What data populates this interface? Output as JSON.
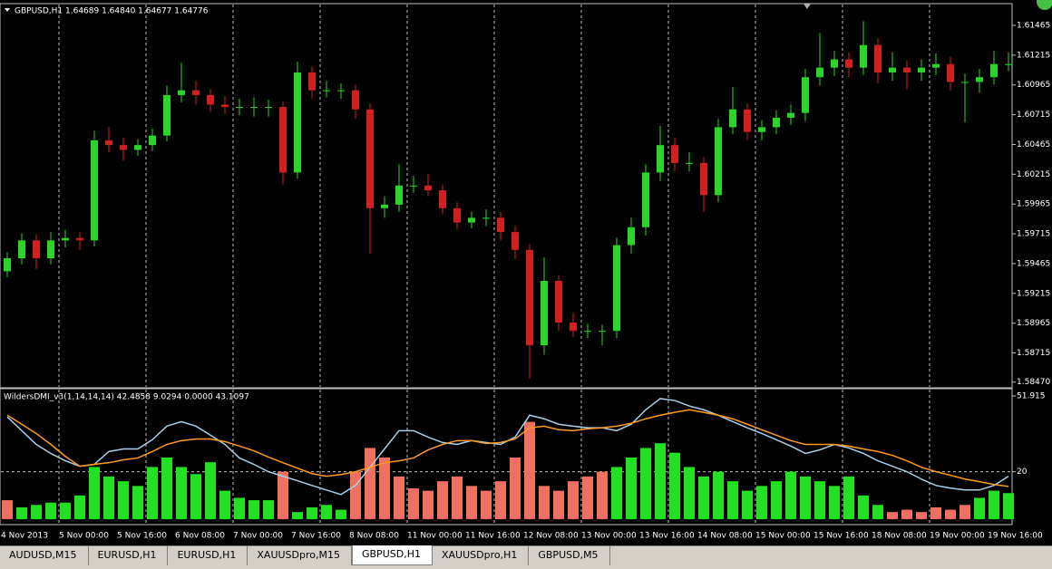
{
  "chart_data": [
    {
      "type": "candlestick",
      "title": "GBPUSD,H1  1.64689 1.64840 1.64677 1.64776",
      "up_color": "#2bd42b",
      "down_color": "#d02020",
      "ylim": [
        1.5843,
        1.6164
      ],
      "yticks": [
        1.61465,
        1.61215,
        1.60965,
        1.60715,
        1.60465,
        1.60215,
        1.59965,
        1.59715,
        1.59465,
        1.59215,
        1.58965,
        1.58715,
        {
          "value": 1.5847,
          "label": "1.58470"
        }
      ],
      "candles": [
        [
          1.594,
          1.5956,
          1.5935,
          1.5951
        ],
        [
          1.5951,
          1.5972,
          1.5946,
          1.5966
        ],
        [
          1.5966,
          1.5971,
          1.5942,
          1.5951
        ],
        [
          1.5951,
          1.5973,
          1.5946,
          1.5966
        ],
        [
          1.5966,
          1.5975,
          1.596,
          1.5968
        ],
        [
          1.5968,
          1.5973,
          1.5958,
          1.5966
        ],
        [
          1.5966,
          1.6058,
          1.5961,
          1.605
        ],
        [
          1.605,
          1.6061,
          1.604,
          1.6046
        ],
        [
          1.6046,
          1.6052,
          1.6033,
          1.6042
        ],
        [
          1.6042,
          1.6051,
          1.6037,
          1.6046
        ],
        [
          1.6046,
          1.606,
          1.6041,
          1.6054
        ],
        [
          1.6054,
          1.6096,
          1.6049,
          1.6088
        ],
        [
          1.6088,
          1.6115,
          1.6082,
          1.6092
        ],
        [
          1.6092,
          1.61,
          1.608,
          1.6088
        ],
        [
          1.6088,
          1.6093,
          1.6074,
          1.608
        ],
        [
          1.608,
          1.6087,
          1.6072,
          1.6078
        ],
        [
          1.6078,
          1.6085,
          1.6071,
          1.6078
        ],
        [
          1.6078,
          1.6086,
          1.607,
          1.6078
        ],
        [
          1.6078,
          1.6084,
          1.607,
          1.6078
        ],
        [
          1.6078,
          1.6083,
          1.6013,
          1.6023
        ],
        [
          1.6023,
          1.6116,
          1.6018,
          1.6107
        ],
        [
          1.6107,
          1.6112,
          1.6085,
          1.6092
        ],
        [
          1.6092,
          1.61,
          1.6086,
          1.6092
        ],
        [
          1.6092,
          1.6098,
          1.6085,
          1.6092
        ],
        [
          1.6092,
          1.6097,
          1.6068,
          1.6076
        ],
        [
          1.6076,
          1.6081,
          1.5955,
          1.5993
        ],
        [
          1.5993,
          1.6003,
          1.5985,
          1.5996
        ],
        [
          1.5996,
          1.603,
          1.599,
          1.6012
        ],
        [
          1.6012,
          1.602,
          1.6006,
          1.6012
        ],
        [
          1.6012,
          1.6022,
          1.6003,
          1.6008
        ],
        [
          1.6008,
          1.6013,
          1.5988,
          1.5993
        ],
        [
          1.5993,
          1.5998,
          1.5975,
          1.5981
        ],
        [
          1.5981,
          1.599,
          1.5976,
          1.5985
        ],
        [
          1.5985,
          1.5992,
          1.5978,
          1.5985
        ],
        [
          1.5985,
          1.599,
          1.5966,
          1.5973
        ],
        [
          1.5973,
          1.5978,
          1.595,
          1.5958
        ],
        [
          1.5958,
          1.5963,
          1.585,
          1.5878
        ],
        [
          1.5878,
          1.5952,
          1.587,
          1.5932
        ],
        [
          1.5932,
          1.5937,
          1.589,
          1.5897
        ],
        [
          1.5897,
          1.5905,
          1.5885,
          1.589
        ],
        [
          1.589,
          1.5896,
          1.5884,
          1.589
        ],
        [
          1.589,
          1.5895,
          1.5878,
          1.589
        ],
        [
          1.589,
          1.5968,
          1.5884,
          1.5962
        ],
        [
          1.5962,
          1.5985,
          1.5955,
          1.5977
        ],
        [
          1.5977,
          1.603,
          1.597,
          1.6023
        ],
        [
          1.6023,
          1.6062,
          1.6016,
          1.6046
        ],
        [
          1.6046,
          1.6052,
          1.6024,
          1.6031
        ],
        [
          1.6031,
          1.604,
          1.6024,
          1.6031
        ],
        [
          1.6031,
          1.6036,
          1.599,
          1.6004
        ],
        [
          1.6004,
          1.6068,
          1.5998,
          1.6061
        ],
        [
          1.6061,
          1.6095,
          1.6055,
          1.6076
        ],
        [
          1.6076,
          1.6081,
          1.605,
          1.6057
        ],
        [
          1.6057,
          1.6067,
          1.605,
          1.6061
        ],
        [
          1.6061,
          1.6075,
          1.6055,
          1.6069
        ],
        [
          1.6069,
          1.608,
          1.6063,
          1.6073
        ],
        [
          1.6073,
          1.611,
          1.6066,
          1.6103
        ],
        [
          1.6103,
          1.614,
          1.6096,
          1.6111
        ],
        [
          1.6111,
          1.6125,
          1.6104,
          1.6118
        ],
        [
          1.6118,
          1.6124,
          1.6103,
          1.6111
        ],
        [
          1.6111,
          1.615,
          1.6105,
          1.613
        ],
        [
          1.613,
          1.6136,
          1.6098,
          1.6107
        ],
        [
          1.6107,
          1.6124,
          1.61,
          1.6111
        ],
        [
          1.6111,
          1.6117,
          1.6093,
          1.6107
        ],
        [
          1.6107,
          1.6118,
          1.61,
          1.6111
        ],
        [
          1.6111,
          1.6123,
          1.6105,
          1.6114
        ],
        [
          1.6114,
          1.612,
          1.6092,
          1.6099
        ],
        [
          1.6099,
          1.6106,
          1.6065,
          1.6099
        ],
        [
          1.6099,
          1.611,
          1.609,
          1.6103
        ],
        [
          1.6103,
          1.6125,
          1.6097,
          1.6114
        ],
        [
          1.6114,
          1.6124,
          1.6108,
          1.6114
        ]
      ],
      "xlabels": [
        "4 Nov 2013",
        "5 Nov 00:00",
        "5 Nov 16:00",
        "6 Nov 08:00",
        "7 Nov 00:00",
        "7 Nov 16:00",
        "8 Nov 08:00",
        "11 Nov 00:00",
        "11 Nov 16:00",
        "12 Nov 08:00",
        "13 Nov 00:00",
        "13 Nov 16:00",
        "14 Nov 08:00",
        "15 Nov 00:00",
        "15 Nov 16:00",
        "18 Nov 08:00",
        "19 Nov 00:00",
        "19 Nov 16:00"
      ]
    },
    {
      "type": "indicator",
      "title": "WildersDMI_v3(1,14,14,14) 42.4858 9.0294 0.0000 43.1097",
      "ylim": [
        -1.9,
        54.6
      ],
      "yticks": [
        51.915,
        20
      ],
      "histogram": [
        8,
        5,
        6,
        7,
        7,
        10,
        22,
        18,
        16,
        14,
        22,
        26,
        22,
        19,
        24,
        12,
        9,
        8,
        8,
        20,
        3,
        5,
        6,
        4,
        20,
        30,
        26,
        18,
        13,
        12,
        16,
        18,
        14,
        12,
        16,
        26,
        41,
        14,
        12,
        16,
        18,
        20,
        22,
        26,
        30,
        32,
        28,
        22,
        18,
        20,
        16,
        12,
        14,
        16,
        20,
        18,
        16,
        14,
        18,
        10,
        6,
        3,
        4,
        3,
        5,
        4,
        6,
        9,
        12,
        11
      ],
      "bar_colors": [
        "#f07060",
        "#22e022",
        "#22e022",
        "#22e022",
        "#22e022",
        "#22e022",
        "#22e022",
        "#22e022",
        "#22e022",
        "#22e022",
        "#22e022",
        "#22e022",
        "#22e022",
        "#22e022",
        "#22e022",
        "#22e022",
        "#22e022",
        "#22e022",
        "#22e022",
        "#f07060",
        "#22e022",
        "#22e022",
        "#22e022",
        "#22e022",
        "#f07060",
        "#f07060",
        "#f07060",
        "#f07060",
        "#f07060",
        "#f07060",
        "#f07060",
        "#f07060",
        "#f07060",
        "#f07060",
        "#f07060",
        "#f07060",
        "#f07060",
        "#f07060",
        "#f07060",
        "#f07060",
        "#f07060",
        "#f07060",
        "#22e022",
        "#22e022",
        "#22e022",
        "#22e022",
        "#22e022",
        "#22e022",
        "#22e022",
        "#22e022",
        "#22e022",
        "#22e022",
        "#22e022",
        "#22e022",
        "#22e022",
        "#22e022",
        "#22e022",
        "#22e022",
        "#22e022",
        "#22e022",
        "#22e022",
        "#f07060",
        "#f07060",
        "#f07060",
        "#f07060",
        "#f07060",
        "#f07060",
        "#22e022",
        "#22e022",
        "#22e022"
      ],
      "lines": [
        {
          "color": "#a8d0e8",
          "values": [
            43.1,
            37.3,
            31.5,
            27.7,
            24.6,
            22.3,
            23.1,
            28.5,
            29.6,
            29.6,
            33.5,
            39.2,
            41.1,
            39.2,
            35.4,
            31.5,
            25.8,
            23.1,
            20,
            18.1,
            16.2,
            14.2,
            12.3,
            10.4,
            14.2,
            21.9,
            29.6,
            37.3,
            37.3,
            34.6,
            32.3,
            31.5,
            33.1,
            32.3,
            31.5,
            34.6,
            43.8,
            42.3,
            40,
            39.2,
            38.5,
            38.5,
            37.3,
            40,
            46.1,
            50.8,
            50,
            47.7,
            46.1,
            43.8,
            41.1,
            38.5,
            36.1,
            33.5,
            30.8,
            27.7,
            29.2,
            31.5,
            30,
            27.7,
            24.6,
            22.3,
            20,
            16.9,
            14.2,
            13.1,
            12.3,
            12.3,
            14.2,
            18.1
          ]
        },
        {
          "color": "#ff9a1e",
          "values": [
            43.8,
            40,
            36.1,
            31.5,
            26.5,
            22.3,
            23.1,
            23.8,
            25,
            25.8,
            28.5,
            31.5,
            33.1,
            33.8,
            33.8,
            32.7,
            30.8,
            28.8,
            26.2,
            23.8,
            21.5,
            19.2,
            18.1,
            18.8,
            20,
            21.9,
            23.8,
            24.6,
            25.8,
            29.2,
            31.5,
            33.1,
            33.1,
            31.9,
            32.3,
            33.8,
            38.5,
            39.2,
            37.7,
            37.3,
            38.1,
            38.5,
            39.2,
            40.4,
            42.3,
            43.8,
            45,
            46.1,
            45,
            43.8,
            42.3,
            40,
            37.7,
            35.4,
            33.1,
            31.5,
            31.5,
            31.5,
            30.8,
            29.6,
            28.5,
            26.9,
            24.6,
            21.9,
            20,
            18.5,
            16.9,
            15.8,
            14.6,
            13.8
          ]
        }
      ]
    }
  ],
  "tabs": [
    "AUDUSD,M15",
    "EURUSD,H1",
    "EURUSD,H1",
    "XAUUSDpro,M15",
    "GBPUSD,H1",
    "XAUUSDpro,H1",
    "GBPUSD,M5"
  ],
  "active_tab": 4
}
